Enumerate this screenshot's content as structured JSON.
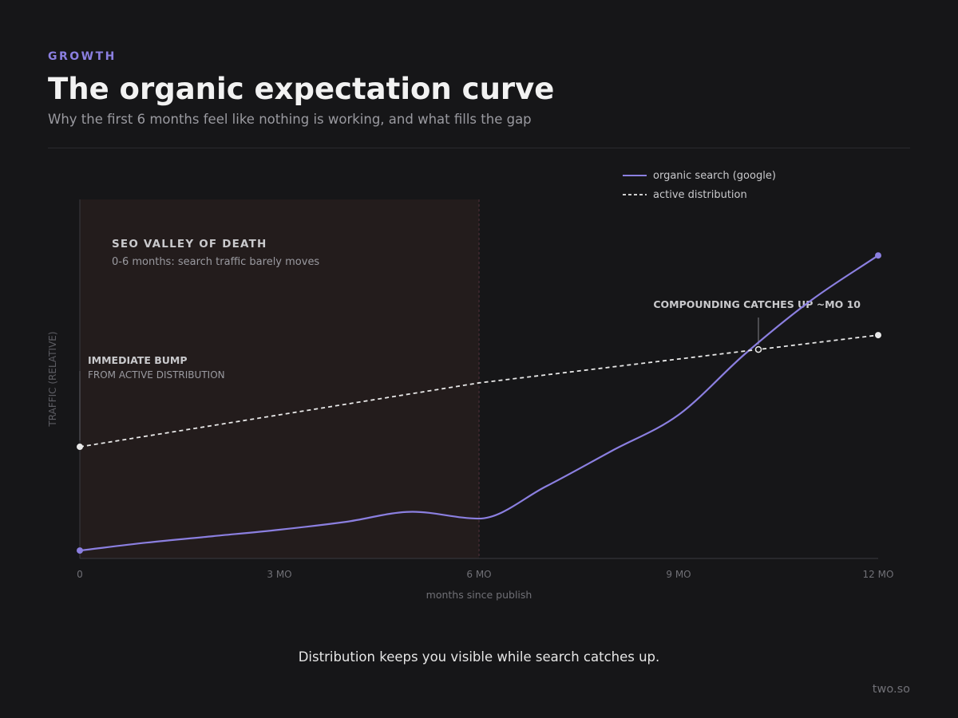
{
  "header": {
    "eyebrow": "GROWTH",
    "title": "The organic expectation curve",
    "subtitle": "Why the first 6 months feel like nothing is working, and what fills the gap"
  },
  "chart_data": {
    "type": "line",
    "xlabel": "months since publish",
    "ylabel": "TRAFFIC (RELATIVE)",
    "xlim": [
      0,
      12
    ],
    "ylim": [
      0,
      100
    ],
    "x_ticks": [
      {
        "value": 0,
        "label": "0"
      },
      {
        "value": 3,
        "label": "3 MO"
      },
      {
        "value": 6,
        "label": "6 MO"
      },
      {
        "value": 9,
        "label": "9 MO"
      },
      {
        "value": 12,
        "label": "12 MO"
      }
    ],
    "grid": false,
    "legend_position": "top-right",
    "series": [
      {
        "name": "organic search (google)",
        "style": "solid",
        "color": "#8b7fe0",
        "x": [
          0,
          1,
          2,
          3,
          4,
          5,
          6,
          7,
          8,
          9,
          10,
          11,
          12
        ],
        "y": [
          2.2,
          4.4,
          6.2,
          8,
          10.2,
          13,
          11.1,
          20,
          30,
          40,
          57,
          72,
          84.4
        ],
        "y_note_removed": true
      },
      {
        "name": "active distribution",
        "style": "dashed",
        "color": "#e8e8e8",
        "x": [
          0,
          6,
          12
        ],
        "y": [
          31.1,
          48.9,
          62.2
        ]
      }
    ],
    "highlight_region": {
      "x_range": [
        0,
        6
      ],
      "title": "SEO VALLEY OF DEATH",
      "subtitle": "0-6 months: search traffic barely moves"
    },
    "annotations": [
      {
        "line1": "IMMEDIATE BUMP",
        "line2": "FROM ACTIVE DISTRIBUTION",
        "x": 0
      },
      {
        "text": "COMPOUNDING CATCHES UP ~MO 10",
        "x": 10.2,
        "y": 58.2
      }
    ]
  },
  "footer": {
    "caption": "Distribution keeps you visible while search catches up.",
    "brand": "two.so"
  },
  "colors": {
    "background": "#161618",
    "accent": "#8b7fe0",
    "region_fill": "#231c1c",
    "divider": "#2a2a2e"
  }
}
